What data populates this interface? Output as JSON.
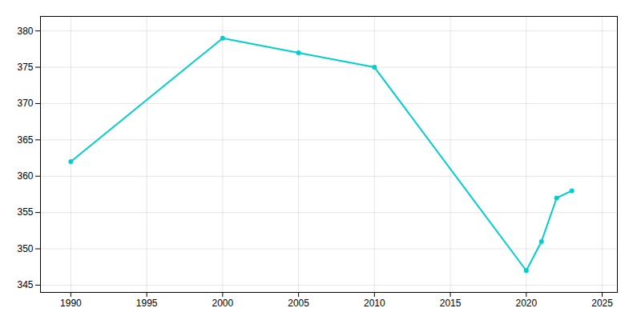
{
  "chart_data": {
    "type": "line",
    "x": [
      1990,
      2000,
      2005,
      2010,
      2020,
      2021,
      2022,
      2023
    ],
    "values": [
      362,
      379,
      377,
      375,
      347,
      351,
      357,
      358
    ],
    "color": "#00CED1",
    "marker": "circle",
    "xlim": [
      1988,
      2026
    ],
    "ylim": [
      344,
      382
    ],
    "xticks": [
      1990,
      1995,
      2000,
      2005,
      2010,
      2015,
      2020,
      2025
    ],
    "yticks": [
      345,
      350,
      355,
      360,
      365,
      370,
      375,
      380
    ],
    "grid": true
  }
}
